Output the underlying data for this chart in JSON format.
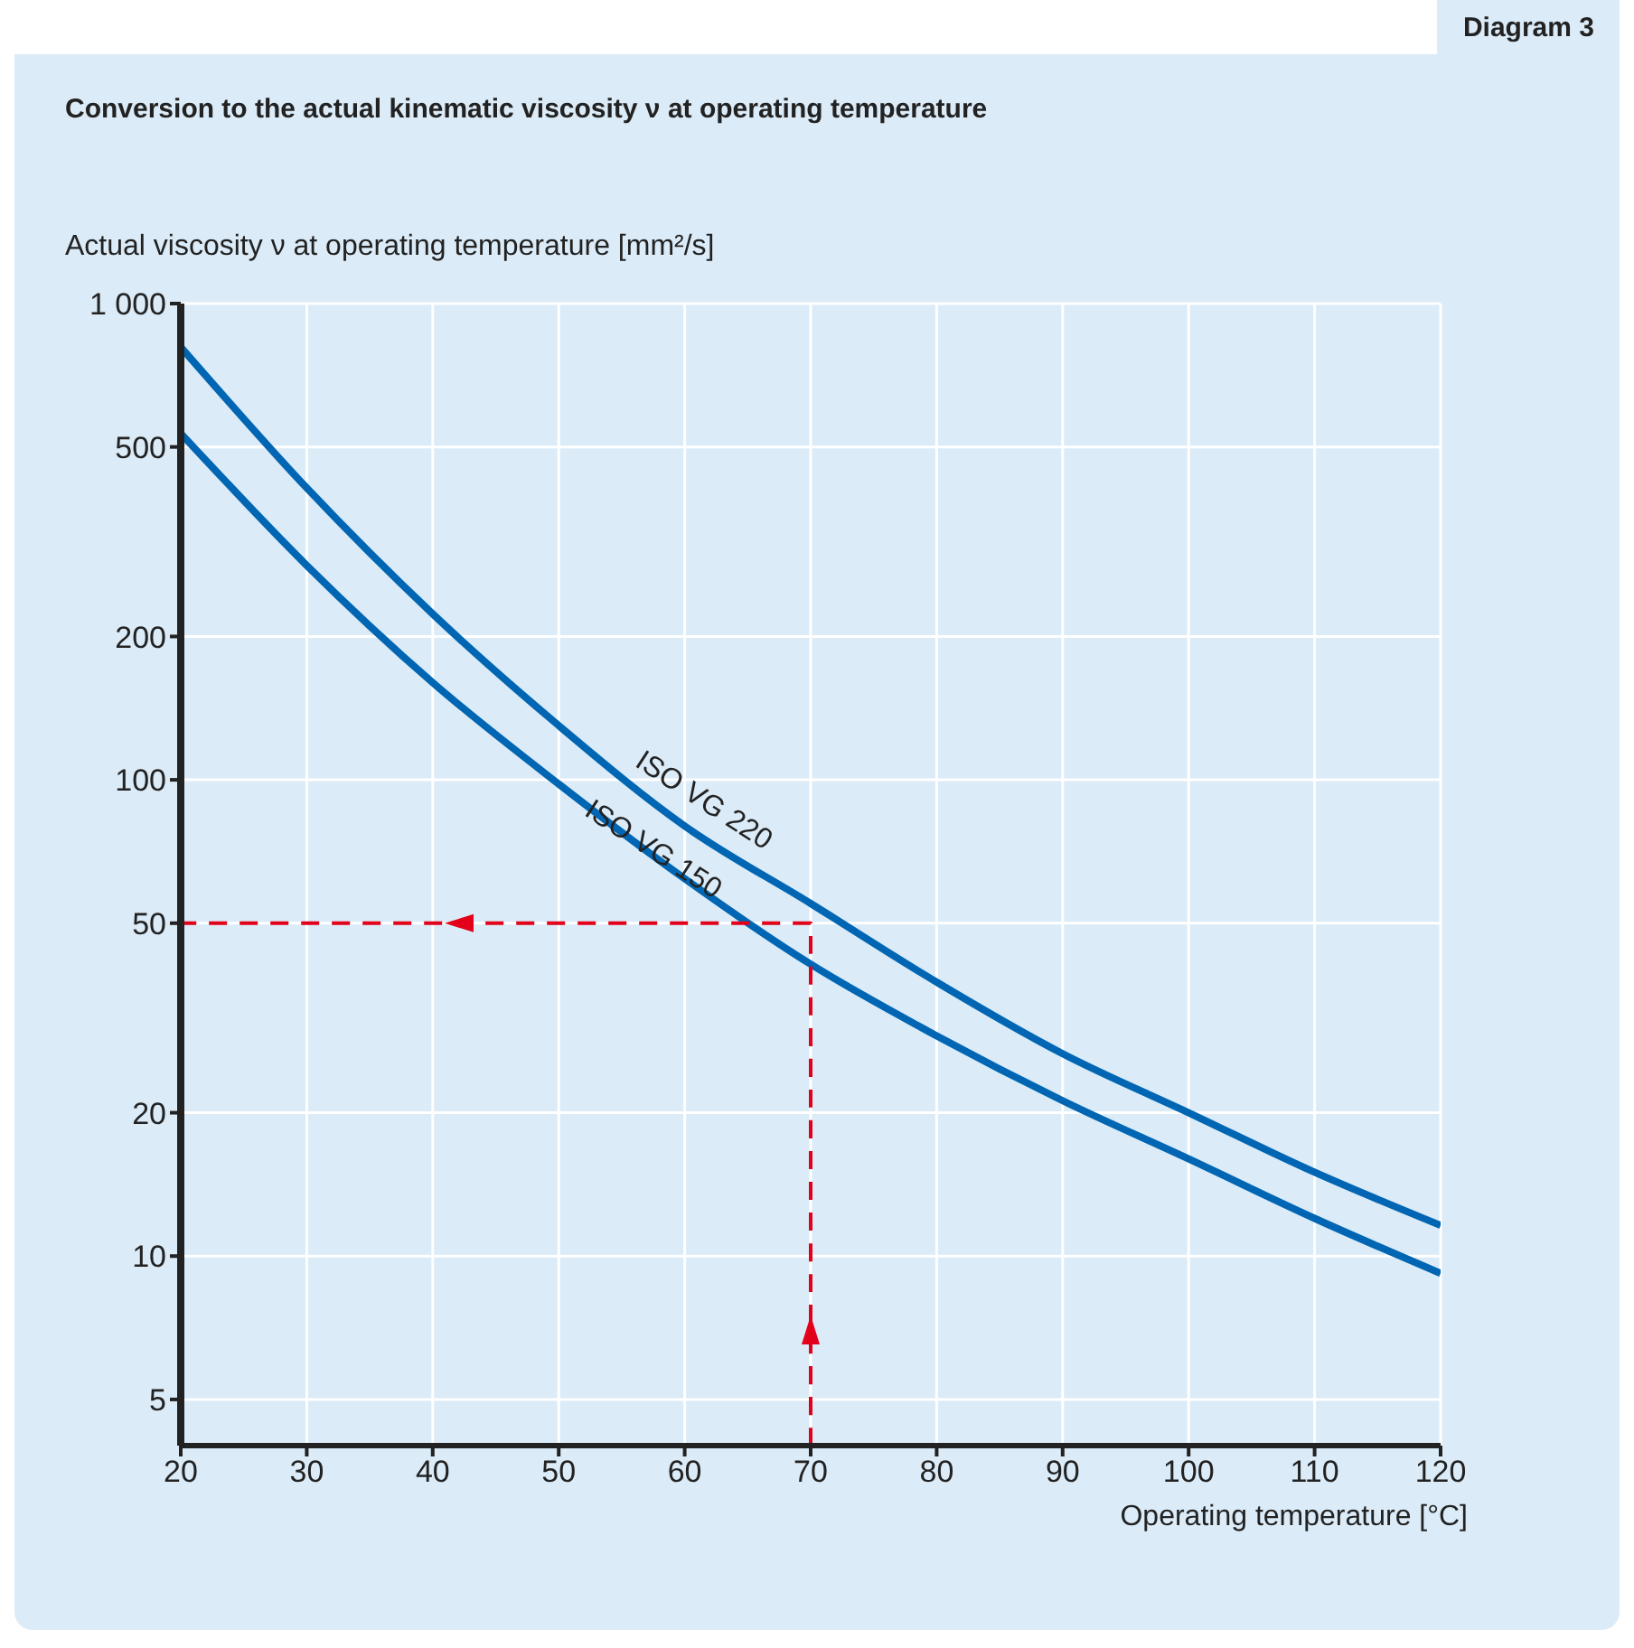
{
  "chart_data": {
    "type": "line",
    "title": "Conversion to the actual kinematic viscosity ν at operating temperature",
    "annotations": [
      "Diagram 3"
    ],
    "xlabel": "Operating temperature [°C]",
    "ylabel": "Actual viscosity ν at operating temperature [mm²/s]",
    "log": "y",
    "grid": true,
    "marker": "none",
    "line_style": "solid",
    "xlim": [
      20,
      120
    ],
    "xticks": [
      20,
      30,
      40,
      50,
      60,
      70,
      80,
      90,
      100,
      110,
      120
    ],
    "ylim": [
      4,
      1000
    ],
    "yticks": [
      5,
      10,
      20,
      50,
      100,
      200,
      {
        "value": 500,
        "label": "500"
      },
      {
        "value": 1000,
        "label": "1 000"
      }
    ],
    "series": [
      {
        "name": "ISO VG 220",
        "color": "#0066b3",
        "x": [
          20,
          30,
          40,
          50,
          60,
          70,
          80,
          90,
          100,
          110,
          120
        ],
        "values": [
          810,
          410,
          223,
          130,
          80,
          55,
          37.6,
          26.6,
          20,
          15,
          11.6
        ]
      },
      {
        "name": "ISO VG 150",
        "color": "#0066b3",
        "x": [
          20,
          30,
          40,
          50,
          60,
          70,
          80,
          90,
          100,
          110,
          120
        ],
        "values": [
          534,
          282,
          160,
          98,
          62,
          41,
          29,
          21.2,
          16,
          12,
          9.2
        ]
      },
      {
        "color": "#e2001a",
        "line_style": "dashed",
        "x": [
          70,
          70,
          20
        ],
        "values": [
          4,
          50,
          50
        ]
      }
    ]
  }
}
